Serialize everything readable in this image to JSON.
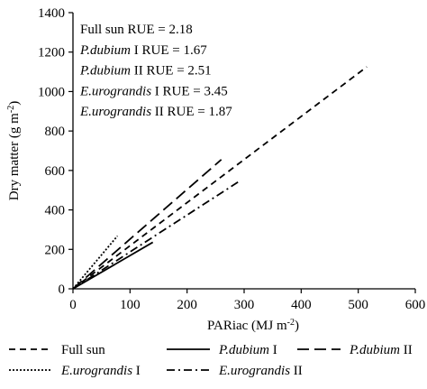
{
  "chart_data": {
    "type": "line",
    "xlabel": "PARiac (MJ m",
    "xlabel_sup": "-2",
    "xlabel_end": ")",
    "ylabel": "Dry matter (g m",
    "ylabel_sup": "-2",
    "ylabel_end": ")",
    "xlim": [
      0,
      600
    ],
    "ylim": [
      0,
      1400
    ],
    "xticks": [
      0,
      100,
      200,
      300,
      400,
      500,
      600
    ],
    "yticks": [
      0,
      200,
      400,
      600,
      800,
      1000,
      1200,
      1400
    ],
    "grid": false,
    "legend_position": "bottom",
    "annotations": [
      {
        "italic": "",
        "rest": "Full sun RUE = 2.18"
      },
      {
        "italic": "P.dubium",
        "rest": " I RUE = 1.67"
      },
      {
        "italic": "P.dubium",
        "rest": " II RUE = 2.51"
      },
      {
        "italic": "E.urograndis",
        "rest": " I RUE = 3.45"
      },
      {
        "italic": "E.urograndis",
        "rest": " II RUE = 1.87"
      }
    ],
    "series": [
      {
        "name_italic": "",
        "name_rest": "Full sun",
        "dash": "long-dash",
        "x": [
          0,
          515
        ],
        "y": [
          0,
          1125
        ]
      },
      {
        "name_italic": "P.dubium",
        "name_rest": " I",
        "dash": "solid",
        "x": [
          0,
          140
        ],
        "y": [
          0,
          236
        ]
      },
      {
        "name_italic": "P.dubium",
        "name_rest": " II",
        "dash": "long-long-dash",
        "x": [
          0,
          260
        ],
        "y": [
          0,
          655
        ]
      },
      {
        "name_italic": "E.urograndis",
        "name_rest": " I",
        "dash": "dotted",
        "x": [
          0,
          78
        ],
        "y": [
          0,
          268
        ]
      },
      {
        "name_italic": "E.urograndis",
        "name_rest": " II",
        "dash": "dash-dot",
        "x": [
          0,
          293
        ],
        "y": [
          0,
          548
        ]
      }
    ]
  }
}
